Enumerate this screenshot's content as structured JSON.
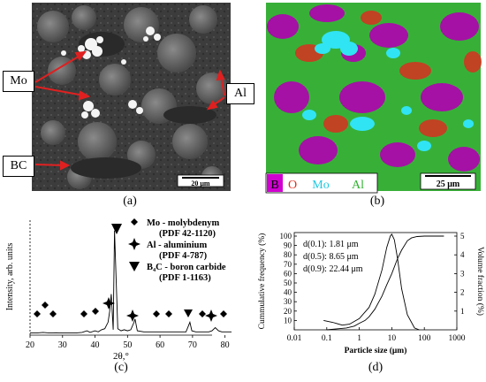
{
  "panel_a": {
    "caption": "(a)",
    "labels": {
      "mo": "Mo",
      "al": "Al",
      "bc": "BC"
    },
    "scale_bar": "20 μm"
  },
  "panel_b": {
    "caption": "(b)",
    "legend": [
      {
        "label": "B",
        "color": "#c800c8"
      },
      {
        "label": "O",
        "color": "#e03020"
      },
      {
        "label": "Mo",
        "color": "#30e0f0"
      },
      {
        "label": "Al",
        "color": "#30c030"
      }
    ],
    "scale_bar": "25 μm"
  },
  "panel_c": {
    "caption": "(c)",
    "ylabel": "Intensity, arb. units",
    "xlabel": "2θ,°",
    "xticks": [
      "20",
      "30",
      "40",
      "50",
      "60",
      "70",
      "80"
    ],
    "legend": [
      {
        "marker": "diamond",
        "line1": "Mo - molybdenym",
        "line2": "(PDF 42-1120)"
      },
      {
        "marker": "star",
        "line1": "Al - aluminium",
        "line2": "(PDF 4-787)"
      },
      {
        "marker": "triangle",
        "line1": "B₄C - boron carbide",
        "line2": "(PDF 1-1163)"
      }
    ]
  },
  "panel_d": {
    "caption": "(d)",
    "ylabel_left": "Cummulative frequency (%)",
    "ylabel_right": "Volume fraction (%)",
    "xlabel": "Particle size (μm)",
    "xticks": [
      "0.01",
      "0.1",
      "1",
      "10",
      "100",
      "1000"
    ],
    "yticks_left": [
      "10",
      "20",
      "30",
      "40",
      "50",
      "60",
      "70",
      "80",
      "90",
      "100"
    ],
    "yticks_right": [
      "1",
      "2",
      "3",
      "4",
      "5"
    ],
    "annotations": [
      "d(0.1): 1.81 μm",
      "d(0.5): 8.65 μm",
      "d(0.9): 22.44 μm"
    ]
  },
  "chart_data": [
    {
      "type": "line",
      "title": "",
      "xlabel": "2θ,°",
      "ylabel": "Intensity, arb. units",
      "xlim": [
        20,
        82
      ],
      "x": [
        20,
        22,
        24,
        26,
        28,
        30,
        32,
        34,
        36,
        37.5,
        38.5,
        40,
        41,
        42,
        43,
        44,
        44.5,
        45,
        45.6,
        46,
        47,
        48,
        49,
        50,
        51,
        52,
        52.3,
        53,
        55,
        58,
        60,
        62,
        64,
        66,
        68,
        69.2,
        69.8,
        71,
        73,
        75,
        76,
        77,
        78,
        79,
        80,
        82
      ],
      "y": [
        2,
        2,
        2.5,
        2,
        2.2,
        2,
        2,
        2,
        2.5,
        4,
        2.5,
        4,
        3,
        5,
        6,
        12,
        22,
        38,
        5,
        97,
        6,
        4,
        5,
        4,
        5,
        12,
        15,
        4,
        3,
        3,
        3,
        3,
        3,
        3,
        3,
        12,
        4,
        3,
        3,
        3,
        4,
        7,
        4,
        3,
        3,
        3
      ]
    },
    {
      "type": "line",
      "title": "",
      "xlabel": "Particle size (μm)",
      "ylabel": "Cummulative frequency (%)",
      "xscale": "log",
      "xlim": [
        0.01,
        1000
      ],
      "ylim": [
        0,
        100
      ],
      "y2lim": [
        0,
        5
      ],
      "series": [
        {
          "x": [
            0.1,
            0.2,
            0.4,
            0.7,
            1,
            1.5,
            2,
            3,
            5,
            7,
            10,
            15,
            20,
            30,
            40,
            60,
            100,
            200,
            400
          ],
          "y": [
            0,
            1,
            2,
            4,
            7,
            10,
            14,
            22,
            36,
            48,
            60,
            76,
            85,
            95,
            98,
            99.5,
            100,
            100,
            100
          ]
        },
        {
          "axis": "right",
          "x": [
            0.08,
            0.15,
            0.3,
            0.5,
            1,
            2,
            3,
            5,
            7,
            9,
            10,
            12,
            15,
            20,
            30,
            50,
            70
          ],
          "y": [
            0.5,
            0.4,
            0.25,
            0.3,
            0.6,
            1.2,
            1.9,
            3.2,
            4.4,
            5.0,
            5.1,
            4.8,
            3.8,
            2.2,
            0.8,
            0.1,
            0
          ]
        }
      ]
    }
  ]
}
